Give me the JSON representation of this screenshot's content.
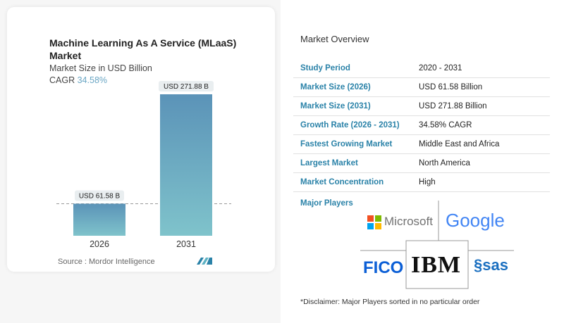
{
  "chart_data": {
    "type": "bar",
    "title": "Machine Learning As A Service (MLaaS) Market",
    "subtitle": "Market Size in USD Billion",
    "cagr_label": "CAGR",
    "cagr_value": "34.58%",
    "categories": [
      "2026",
      "2031"
    ],
    "values": [
      61.58,
      271.88
    ],
    "data_labels": [
      "USD 61.58 B",
      "USD 271.88 B"
    ],
    "colors": {
      "top": "#5b93b8",
      "bottom": "#7fc3cb"
    },
    "source": "Source :  Mordor Intelligence"
  },
  "overview": {
    "title": "Market Overview",
    "rows": [
      {
        "k": "Study Period",
        "v": "2020 - 2031"
      },
      {
        "k": "Market Size (2026)",
        "v": "USD 61.58 Billion"
      },
      {
        "k": "Market Size (2031)",
        "v": "USD 271.88 Billion"
      },
      {
        "k": "Growth Rate (2026 - 2031)",
        "v": "34.58% CAGR"
      },
      {
        "k": "Fastest Growing Market",
        "v": "Middle East and Africa"
      },
      {
        "k": "Largest Market",
        "v": "North America"
      },
      {
        "k": "Market Concentration",
        "v": "High"
      }
    ],
    "major_players_label": "Major Players",
    "players": [
      "Microsoft",
      "Google",
      "FICO",
      "IBM",
      "sas"
    ],
    "disclaimer": "*Disclaimer: Major Players sorted in no particular order"
  }
}
